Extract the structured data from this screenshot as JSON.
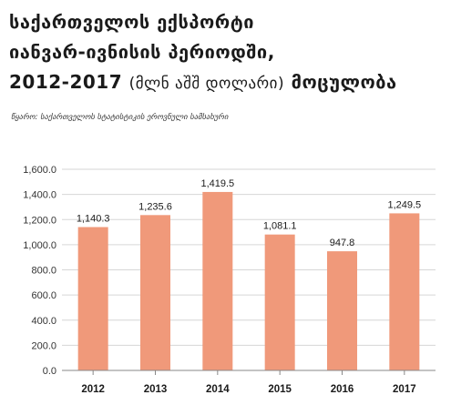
{
  "title": {
    "line1": "საქართველოს ექსპორტი",
    "line2": "იანვარ-ივნისის პერიოდში,",
    "line3_main": "2012-2017",
    "line3_unit": "(მლნ აშშ დოლარი)",
    "line3_end": "მოცულობა"
  },
  "source": "წყარო: საქართველოს სტატისტიკის ეროვნული სამსახური",
  "colors": {
    "bar": "#F0997A",
    "grid": "#D6D6D6",
    "axis": "#888888"
  },
  "chart_data": {
    "type": "bar",
    "categories": [
      "2012",
      "2013",
      "2014",
      "2015",
      "2016",
      "2017"
    ],
    "values": [
      1140.3,
      1235.6,
      1419.5,
      1081.1,
      947.8,
      1249.5
    ],
    "value_labels": [
      "1,140.3",
      "1,235.6",
      "1,419.5",
      "1,081.1",
      "947.8",
      "1,249.5"
    ],
    "ylim": [
      0,
      1600
    ],
    "yticks": [
      "0.0",
      "200.0",
      "400.0",
      "600.0",
      "800.0",
      "1,000.0",
      "1,200.0",
      "1,400.0",
      "1,600.0"
    ],
    "grid": true,
    "xlabel": "",
    "ylabel": ""
  }
}
